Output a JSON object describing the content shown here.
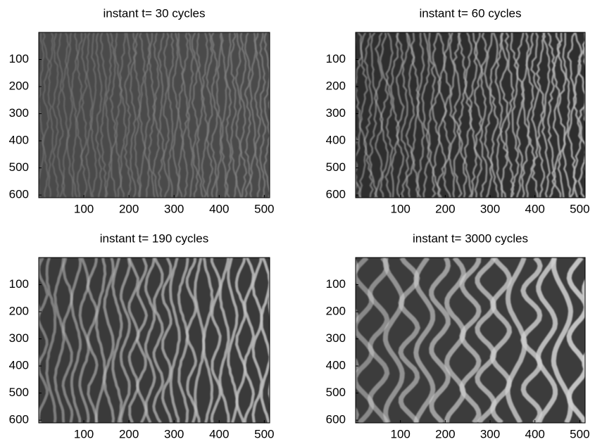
{
  "chart_data": [
    {
      "type": "image",
      "title": "instant t= 30 cycles",
      "xlim": [
        0,
        512
      ],
      "ylim": [
        0,
        610
      ],
      "y_reversed": true,
      "xticks": [
        100,
        200,
        300,
        400,
        500
      ],
      "yticks": [
        100,
        200,
        300,
        400,
        500,
        600
      ]
    },
    {
      "type": "image",
      "title": "instant t= 60 cycles",
      "xlim": [
        0,
        512
      ],
      "ylim": [
        0,
        610
      ],
      "y_reversed": true,
      "xticks": [
        100,
        200,
        300,
        400,
        500
      ],
      "yticks": [
        100,
        200,
        300,
        400,
        500,
        600
      ]
    },
    {
      "type": "image",
      "title": "instant t= 190 cycles",
      "xlim": [
        0,
        512
      ],
      "ylim": [
        0,
        610
      ],
      "y_reversed": true,
      "xticks": [
        100,
        200,
        300,
        400,
        500
      ],
      "yticks": [
        100,
        200,
        300,
        400,
        500,
        600
      ]
    },
    {
      "type": "image",
      "title": "instant t= 3000 cycles",
      "xlim": [
        0,
        512
      ],
      "ylim": [
        0,
        610
      ],
      "y_reversed": true,
      "xticks": [
        100,
        200,
        300,
        400,
        500
      ],
      "yticks": [
        100,
        200,
        300,
        400,
        500,
        600
      ]
    }
  ]
}
